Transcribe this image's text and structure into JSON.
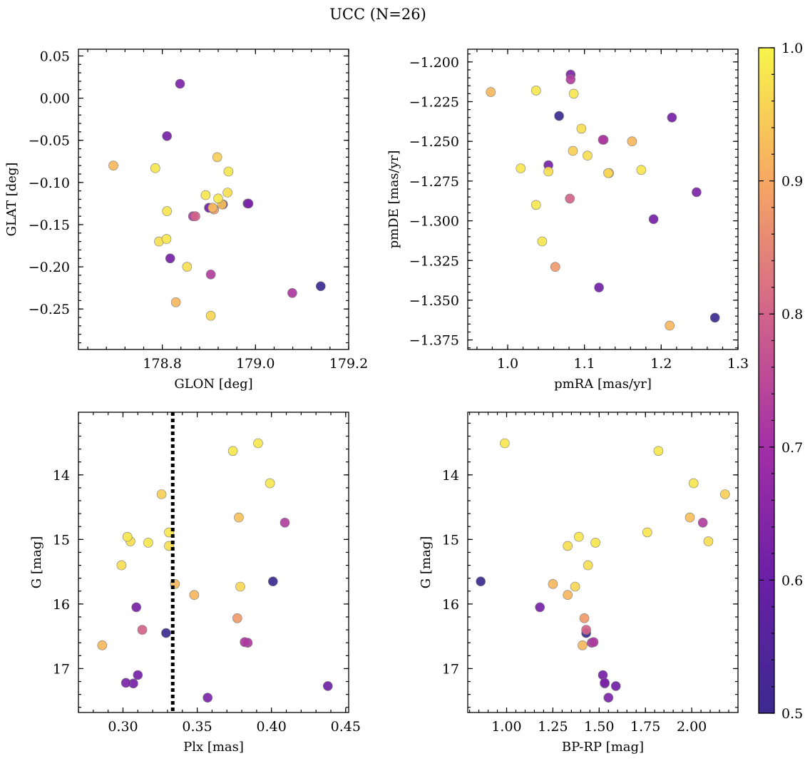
{
  "chart_data": {
    "title": "UCC (N=26)",
    "type": "scatter",
    "colorbar": {
      "colormap": "plasma",
      "range": [
        0.5,
        1.0
      ],
      "ticks": [
        0.5,
        0.6,
        0.7,
        0.8,
        0.9,
        1.0
      ],
      "tick_labels": [
        "0.5",
        "0.6",
        "0.7",
        "0.8",
        "0.9",
        "1.0"
      ]
    },
    "stars": [
      {
        "glon": 178.838,
        "glat": 0.017,
        "pmra": 1.082,
        "pmde": -1.208,
        "plx": 0.357,
        "g": 17.45,
        "bprp": 1.55,
        "p": 0.63
      },
      {
        "glon": 178.81,
        "glat": -0.045,
        "pmra": 1.053,
        "pmde": -1.265,
        "plx": 0.309,
        "g": 16.05,
        "bprp": 1.18,
        "p": 0.62
      },
      {
        "glon": 178.695,
        "glat": -0.08,
        "pmra": 0.978,
        "pmde": -1.219,
        "plx": 0.286,
        "g": 16.64,
        "bprp": 1.41,
        "p": 0.92
      },
      {
        "glon": 178.785,
        "glat": -0.083,
        "pmra": 1.037,
        "pmde": -1.218,
        "plx": 0.303,
        "g": 14.96,
        "bprp": 1.39,
        "p": 0.98
      },
      {
        "glon": 178.918,
        "glat": -0.07,
        "pmra": 1.085,
        "pmde": -1.256,
        "plx": 0.326,
        "g": 14.3,
        "bprp": 2.18,
        "p": 0.95
      },
      {
        "glon": 178.942,
        "glat": -0.087,
        "pmra": 1.086,
        "pmde": -1.22,
        "plx": 0.331,
        "g": 14.89,
        "bprp": 1.76,
        "p": 0.98
      },
      {
        "glon": 178.94,
        "glat": -0.112,
        "pmra": 1.104,
        "pmde": -1.259,
        "plx": 0.305,
        "g": 15.03,
        "bprp": 2.09,
        "p": 0.97
      },
      {
        "glon": 178.893,
        "glat": -0.115,
        "pmra": 1.017,
        "pmde": -1.267,
        "plx": 0.317,
        "g": 15.05,
        "bprp": 1.48,
        "p": 0.98
      },
      {
        "glon": 178.92,
        "glat": -0.119,
        "pmra": 1.174,
        "pmde": -1.268,
        "plx": 0.399,
        "g": 14.13,
        "bprp": 2.01,
        "p": 0.98
      },
      {
        "glon": 178.928,
        "glat": -0.126,
        "pmra": 1.132,
        "pmde": -1.27,
        "plx": 0.378,
        "g": 14.66,
        "bprp": 1.99,
        "p": 0.93
      },
      {
        "glon": 178.983,
        "glat": -0.125,
        "pmra": 1.19,
        "pmde": -1.299,
        "plx": 0.31,
        "g": 17.1,
        "bprp": 1.52,
        "p": 0.62
      },
      {
        "glon": 178.908,
        "glat": -0.13,
        "pmra": 1.162,
        "pmde": -1.25,
        "plx": 0.348,
        "g": 15.86,
        "bprp": 1.33,
        "p": 0.92
      },
      {
        "glon": 178.911,
        "glat": -0.132,
        "pmra": 1.062,
        "pmde": -1.329,
        "plx": 0.377,
        "g": 16.22,
        "bprp": 1.42,
        "p": 0.88
      },
      {
        "glon": 178.871,
        "glat": -0.14,
        "pmra": 1.081,
        "pmde": -1.286,
        "plx": 0.313,
        "g": 16.4,
        "bprp": 1.43,
        "p": 0.8
      },
      {
        "glon": 178.866,
        "glat": -0.14,
        "pmra": 1.125,
        "pmde": -1.249,
        "plx": 0.384,
        "g": 16.6,
        "bprp": 1.46,
        "p": 0.72
      },
      {
        "glon": 178.81,
        "glat": -0.134,
        "pmra": 1.037,
        "pmde": -1.29,
        "plx": 0.391,
        "g": 13.51,
        "bprp": 0.99,
        "p": 0.98
      },
      {
        "glon": 178.809,
        "glat": -0.167,
        "pmra": 1.045,
        "pmde": -1.313,
        "plx": 0.374,
        "g": 13.63,
        "bprp": 1.82,
        "p": 0.98
      },
      {
        "glon": 178.793,
        "glat": -0.17,
        "pmra": 1.053,
        "pmde": -1.269,
        "plx": 0.331,
        "g": 15.1,
        "bprp": 1.33,
        "p": 0.97
      },
      {
        "glon": 178.817,
        "glat": -0.19,
        "pmra": 1.214,
        "pmde": -1.235,
        "plx": 0.307,
        "g": 17.23,
        "bprp": 1.53,
        "p": 0.62
      },
      {
        "glon": 178.853,
        "glat": -0.2,
        "pmra": 1.096,
        "pmde": -1.242,
        "plx": 0.299,
        "g": 15.4,
        "bprp": 1.44,
        "p": 0.97
      },
      {
        "glon": 178.904,
        "glat": -0.209,
        "pmra": 1.082,
        "pmde": -1.211,
        "plx": 0.409,
        "g": 14.74,
        "bprp": 2.06,
        "p": 0.73
      },
      {
        "glon": 179.079,
        "glat": -0.231,
        "pmra": 1.124,
        "pmde": -1.249,
        "plx": 0.382,
        "g": 16.59,
        "bprp": 1.47,
        "p": 0.72
      },
      {
        "glon": 179.14,
        "glat": -0.223,
        "pmra": 1.067,
        "pmde": -1.234,
        "plx": 0.401,
        "g": 15.65,
        "bprp": 0.86,
        "p": 0.5
      },
      {
        "glon": 178.829,
        "glat": -0.242,
        "pmra": 1.211,
        "pmde": -1.366,
        "plx": 0.335,
        "g": 15.69,
        "bprp": 1.25,
        "p": 0.92
      },
      {
        "glon": 178.904,
        "glat": -0.258,
        "pmra": 1.131,
        "pmde": -1.27,
        "plx": 0.379,
        "g": 15.73,
        "bprp": 1.37,
        "p": 0.96
      },
      {
        "glon": 178.93,
        "glat": -0.126,
        "pmra": 1.27,
        "pmde": -1.361,
        "plx": 0.329,
        "g": 16.45,
        "bprp": 1.43,
        "p": 0.5
      },
      {
        "glon": 178.985,
        "glat": -0.125,
        "pmra": 1.246,
        "pmde": -1.282,
        "plx": 0.302,
        "g": 17.22,
        "bprp": 1.53,
        "p": 0.63
      },
      {
        "glon": 178.9,
        "glat": -0.13,
        "pmra": 1.119,
        "pmde": -1.342,
        "plx": 0.438,
        "g": 17.27,
        "bprp": 1.59,
        "p": 0.61
      }
    ],
    "panels": [
      {
        "key": "radec",
        "x_field": "glon",
        "y_field": "glat",
        "xlabel": "GLON [deg]",
        "ylabel": "GLAT [deg]",
        "xlim": [
          178.62,
          179.2
        ],
        "ylim": [
          -0.298,
          0.058
        ],
        "y_inverted": false,
        "xticks": [
          178.8,
          179.0,
          179.2
        ],
        "xtick_labels": [
          "178.8",
          "179.0",
          "179.2"
        ],
        "yticks": [
          0.05,
          0.0,
          -0.05,
          -0.1,
          -0.15,
          -0.2,
          -0.25
        ],
        "ytick_labels": [
          "0.05",
          "0.00",
          "−0.05",
          "−0.10",
          "−0.15",
          "−0.20",
          "−0.25"
        ]
      },
      {
        "key": "pm",
        "x_field": "pmra",
        "y_field": "pmde",
        "xlabel": "pmRA [mas/yr]",
        "ylabel": "pmDE [mas/yr]",
        "xlim": [
          0.948,
          1.3
        ],
        "ylim": [
          -1.381,
          -1.192
        ],
        "y_inverted": false,
        "xticks": [
          1.0,
          1.1,
          1.2,
          1.3
        ],
        "xtick_labels": [
          "1.0",
          "1.1",
          "1.2",
          "1.3"
        ],
        "yticks": [
          -1.2,
          -1.225,
          -1.25,
          -1.275,
          -1.3,
          -1.325,
          -1.35,
          -1.375
        ],
        "ytick_labels": [
          "−1.200",
          "−1.225",
          "−1.250",
          "−1.275",
          "−1.300",
          "−1.325",
          "−1.350",
          "−1.375"
        ]
      },
      {
        "key": "plx",
        "x_field": "plx",
        "y_field": "g",
        "xlabel": "Plx [mas]",
        "ylabel": "G [mag]",
        "xlim": [
          0.27,
          0.452
        ],
        "ylim": [
          13.03,
          17.68
        ],
        "y_inverted": true,
        "xticks": [
          0.3,
          0.35,
          0.4,
          0.45
        ],
        "xtick_labels": [
          "0.30",
          "0.35",
          "0.40",
          "0.45"
        ],
        "yticks": [
          14,
          15,
          16,
          17
        ],
        "ytick_labels": [
          "14",
          "15",
          "16",
          "17"
        ],
        "vline": 0.3335
      },
      {
        "key": "cmd",
        "x_field": "bprp",
        "y_field": "g",
        "xlabel": "BP-RP [mag]",
        "ylabel": "G [mag]",
        "xlim": [
          0.79,
          2.25
        ],
        "ylim": [
          13.03,
          17.68
        ],
        "y_inverted": true,
        "xticks": [
          1.0,
          1.25,
          1.5,
          1.75,
          2.0
        ],
        "xtick_labels": [
          "1.00",
          "1.25",
          "1.50",
          "1.75",
          "2.00"
        ],
        "yticks": [
          14,
          15,
          16,
          17
        ],
        "ytick_labels": [
          "14",
          "15",
          "16",
          "17"
        ]
      }
    ]
  }
}
